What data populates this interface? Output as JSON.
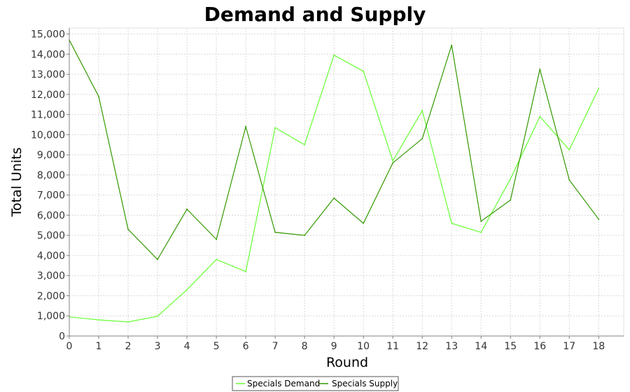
{
  "chart_data": {
    "type": "line",
    "title": "Demand and Supply",
    "xlabel": "Round",
    "ylabel": "Total Units",
    "x": [
      0,
      1,
      2,
      3,
      4,
      5,
      6,
      7,
      8,
      9,
      10,
      11,
      12,
      13,
      14,
      15,
      16,
      17,
      18
    ],
    "xlim": [
      0,
      18.85
    ],
    "ylim": [
      0,
      15300
    ],
    "x_ticks": [
      "0",
      "1",
      "2",
      "3",
      "4",
      "5",
      "6",
      "7",
      "8",
      "9",
      "10",
      "11",
      "12",
      "13",
      "14",
      "15",
      "16",
      "17",
      "18"
    ],
    "y_ticks": [
      {
        "value": 0,
        "label": "0"
      },
      {
        "value": 1000,
        "label": "1,000"
      },
      {
        "value": 2000,
        "label": "2,000"
      },
      {
        "value": 3000,
        "label": "3,000"
      },
      {
        "value": 4000,
        "label": "4,000"
      },
      {
        "value": 5000,
        "label": "5,000"
      },
      {
        "value": 6000,
        "label": "6,000"
      },
      {
        "value": 7000,
        "label": "7,000"
      },
      {
        "value": 8000,
        "label": "8,000"
      },
      {
        "value": 9000,
        "label": "9,000"
      },
      {
        "value": 10000,
        "label": "10,000"
      },
      {
        "value": 11000,
        "label": "11,000"
      },
      {
        "value": 12000,
        "label": "12,000"
      },
      {
        "value": 13000,
        "label": "13,000"
      },
      {
        "value": 14000,
        "label": "14,000"
      },
      {
        "value": 15000,
        "label": "15,000"
      }
    ],
    "grid": true,
    "legend_position": "bottom-center",
    "series": [
      {
        "name": "Specials Demand",
        "color": "#66ff33",
        "values": [
          950,
          800,
          700,
          980,
          2300,
          3800,
          3200,
          10350,
          9500,
          13950,
          13150,
          8700,
          11200,
          5600,
          5150,
          7800,
          10900,
          9250,
          12300
        ]
      },
      {
        "name": "Specials Supply",
        "color": "#339900",
        "values": [
          14700,
          11900,
          5300,
          3800,
          6300,
          4800,
          10400,
          5150,
          5000,
          6850,
          5600,
          8600,
          9800,
          14450,
          5700,
          6750,
          13250,
          7750,
          5800
        ]
      }
    ]
  }
}
